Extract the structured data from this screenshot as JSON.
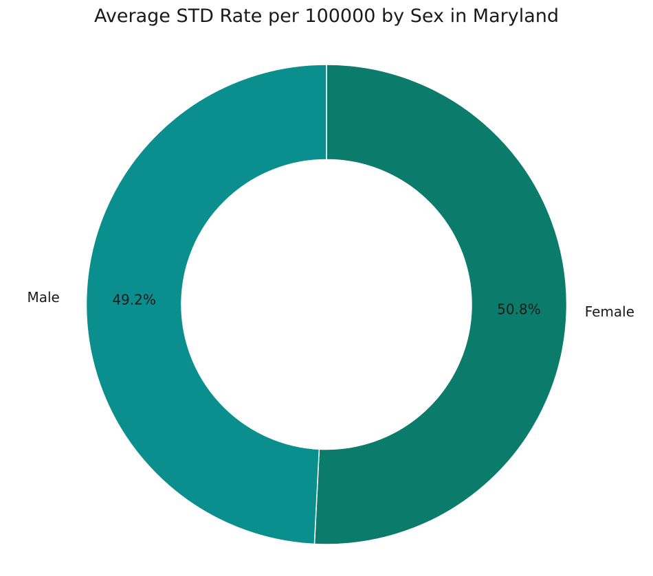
{
  "chart_data": {
    "type": "pie",
    "style": "donut",
    "title": "Average STD Rate per 100000 by Sex in Maryland",
    "slices": [
      {
        "label": "Female",
        "percent": 50.8,
        "percent_label": "50.8%",
        "color": "#0b7b6b"
      },
      {
        "label": "Male",
        "percent": 49.2,
        "percent_label": "49.2%",
        "color": "#0a8e8e"
      }
    ],
    "start_angle": "12 o'clock",
    "direction": "clockwise",
    "edge_color": "#ffffff"
  }
}
